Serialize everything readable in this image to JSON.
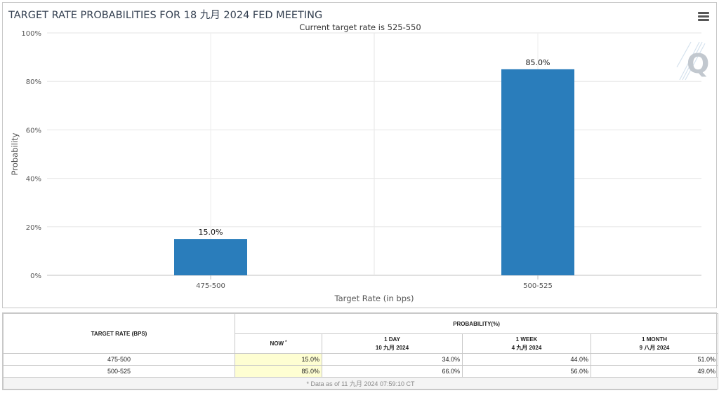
{
  "chart_data": {
    "type": "bar",
    "title": "TARGET RATE PROBABILITIES FOR 18 九月 2024 FED MEETING",
    "subtitle": "Current target rate is 525-550",
    "categories": [
      "475-500",
      "500-525"
    ],
    "values": [
      15.0,
      85.0
    ],
    "data_labels": [
      "15.0%",
      "85.0%"
    ],
    "xlabel": "Target Rate (in bps)",
    "ylabel": "Probability",
    "ylim": [
      0,
      100
    ],
    "yticks": [
      "0%",
      "20%",
      "40%",
      "60%",
      "80%",
      "100%"
    ],
    "grid": true,
    "legend": "none",
    "bar_color": "#2a7dbb"
  },
  "icons": {
    "menu": "hamburger-menu-icon",
    "watermark": "quikstrike-q-logo"
  },
  "table": {
    "rate_header": "TARGET RATE (BPS)",
    "probability_header": "PROBABILITY(%)",
    "columns": [
      {
        "label": "NOW",
        "mark": "*",
        "date": ""
      },
      {
        "label": "1 DAY",
        "date": "10 九月 2024"
      },
      {
        "label": "1 WEEK",
        "date": "4 九月 2024"
      },
      {
        "label": "1 MONTH",
        "date": "9 八月 2024"
      }
    ],
    "rows": [
      {
        "rate": "475-500",
        "now": "15.0%",
        "day": "34.0%",
        "week": "44.0%",
        "month": "51.0%"
      },
      {
        "rate": "500-525",
        "now": "85.0%",
        "day": "66.0%",
        "week": "56.0%",
        "month": "49.0%"
      }
    ],
    "footnote": "* Data as of 11 九月 2024 07:59:10 CT",
    "now_highlight": "#fefed2"
  }
}
